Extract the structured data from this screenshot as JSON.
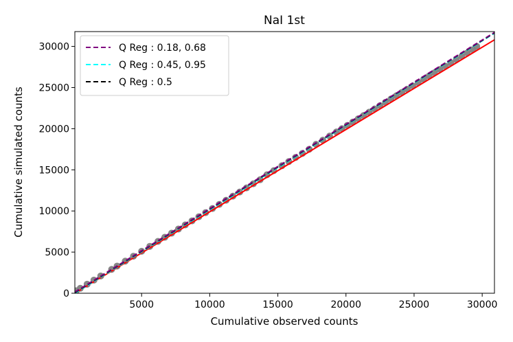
{
  "chart_data": {
    "type": "scatter",
    "title": "NaI 1st",
    "xlabel": "Cumulative observed counts",
    "ylabel": "Cumulative simulated counts",
    "xlim": [
      100,
      30900
    ],
    "ylim": [
      0,
      31800
    ],
    "xticks": [
      5000,
      10000,
      15000,
      20000,
      25000,
      30000
    ],
    "yticks": [
      0,
      5000,
      10000,
      15000,
      20000,
      25000,
      30000
    ],
    "legend_position": "upper left",
    "grid": false,
    "points": {
      "name": "",
      "color": "#808080",
      "x": [
        200,
        500,
        1000,
        1500,
        2000,
        2800,
        3200,
        3800,
        4400,
        5000,
        5600,
        6200,
        6700,
        7200,
        7700,
        8200,
        8700,
        9200,
        9700,
        10200,
        10700,
        11200,
        11700,
        12200,
        12700,
        13200,
        13700,
        14200,
        14700,
        15300,
        15800,
        16300,
        16800,
        17300,
        17800,
        18300,
        18800,
        19300,
        19700,
        20100,
        20500,
        20900,
        21300,
        21700,
        22100,
        22500,
        22900,
        23300,
        23700,
        24100,
        24500,
        24900,
        25300,
        25700,
        26100,
        26500,
        26900,
        27300,
        27700,
        28100,
        28500,
        28900,
        29300,
        29600
      ],
      "y": [
        300,
        600,
        1100,
        1600,
        2100,
        2900,
        3300,
        3900,
        4500,
        5100,
        5700,
        6300,
        6800,
        7300,
        7800,
        8300,
        8800,
        9300,
        9800,
        10300,
        10800,
        11300,
        11800,
        12300,
        12800,
        13300,
        13800,
        14400,
        14900,
        15500,
        16000,
        16500,
        17000,
        17500,
        18100,
        18600,
        19100,
        19600,
        20000,
        20400,
        20800,
        21200,
        21600,
        22000,
        22400,
        22800,
        23200,
        23600,
        24000,
        24400,
        24800,
        25200,
        25600,
        26000,
        26400,
        26800,
        27200,
        27600,
        28000,
        28400,
        28800,
        29200,
        29600,
        30000
      ]
    },
    "series": [
      {
        "name": "Q Reg : 0.18, 0.68",
        "color": "#800080",
        "dash": true,
        "x": [
          100,
          30900
        ],
        "y": [
          150,
          31700
        ]
      },
      {
        "name": "Q Reg : 0.45, 0.95",
        "color": "#00ffff",
        "dash": true,
        "x": [
          100,
          30900
        ],
        "y": [
          0,
          31600
        ]
      },
      {
        "name": "Q Reg : 0.5",
        "color": "#000000",
        "dash": true,
        "x": [
          100,
          30900
        ],
        "y": [
          80,
          31650
        ]
      },
      {
        "name": "",
        "color": "#ff0000",
        "dash": false,
        "x": [
          100,
          30900
        ],
        "y": [
          0,
          30800
        ]
      }
    ]
  }
}
